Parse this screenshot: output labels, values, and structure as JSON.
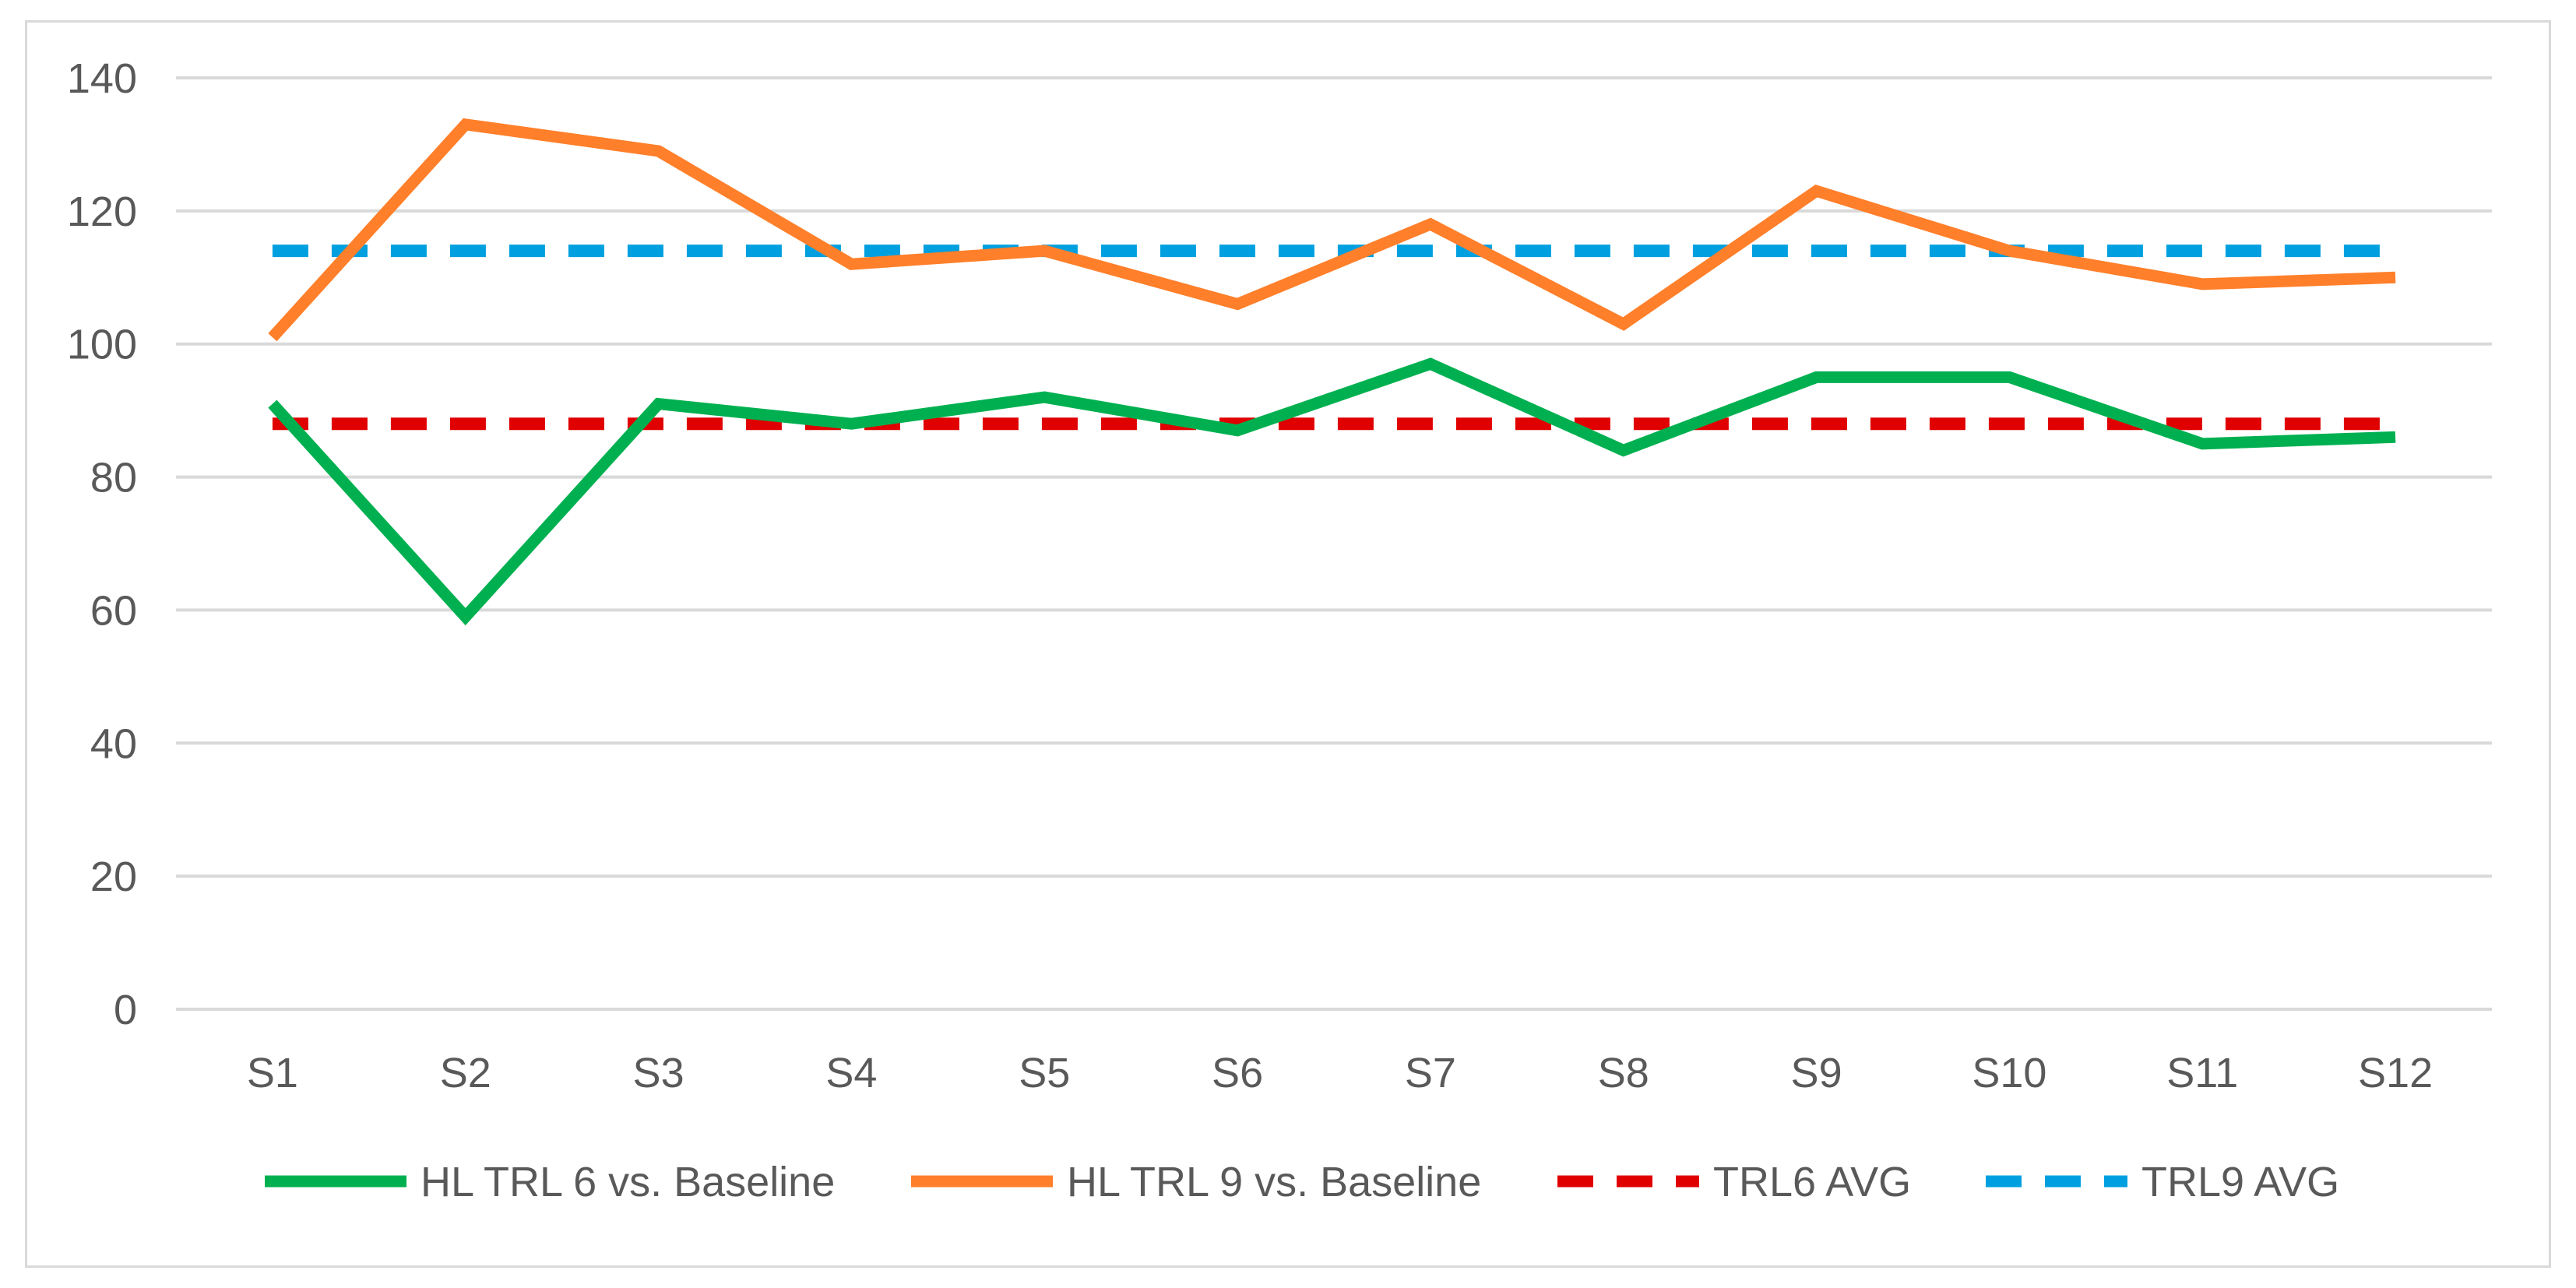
{
  "chart_data": {
    "type": "line",
    "title": "",
    "xlabel": "",
    "ylabel": "",
    "ylim": [
      0,
      140
    ],
    "yticks": [
      0,
      20,
      40,
      60,
      80,
      100,
      120,
      140
    ],
    "grid": true,
    "legend_position": "bottom",
    "categories": [
      "S1",
      "S2",
      "S3",
      "S4",
      "S5",
      "S6",
      "S7",
      "S8",
      "S9",
      "S10",
      "S11",
      "S12"
    ],
    "series": [
      {
        "name": "HL TRL 6 vs. Baseline",
        "color": "#00b050",
        "dashed": false,
        "values": [
          91,
          59,
          91,
          88,
          92,
          87,
          97,
          84,
          95,
          95,
          85,
          86
        ]
      },
      {
        "name": "HL TRL 9 vs. Baseline",
        "color": "#ff7f2a",
        "dashed": false,
        "values": [
          101,
          133,
          129,
          112,
          114,
          106,
          118,
          103,
          123,
          114,
          109,
          110
        ]
      },
      {
        "name": "TRL6 AVG",
        "color": "#e00000",
        "dashed": true,
        "values": [
          88,
          88,
          88,
          88,
          88,
          88,
          88,
          88,
          88,
          88,
          88,
          88
        ]
      },
      {
        "name": "TRL9 AVG",
        "color": "#00a0e0",
        "dashed": true,
        "values": [
          114,
          114,
          114,
          114,
          114,
          114,
          114,
          114,
          114,
          114,
          114,
          114
        ]
      }
    ]
  }
}
